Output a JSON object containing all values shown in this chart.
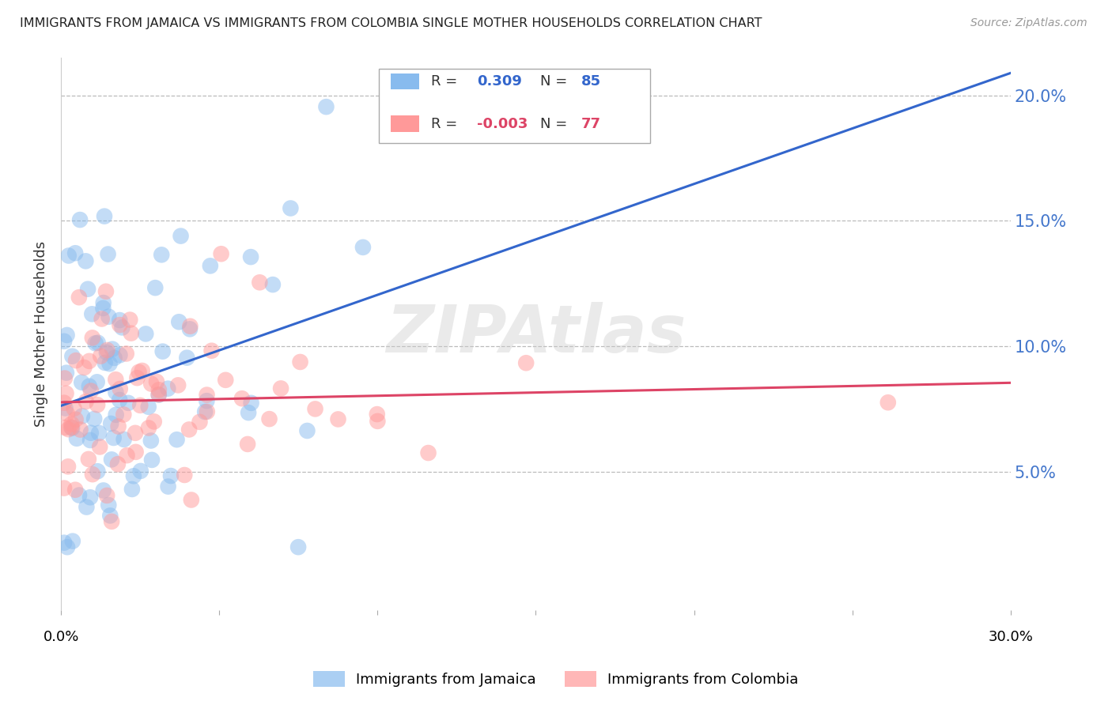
{
  "title": "IMMIGRANTS FROM JAMAICA VS IMMIGRANTS FROM COLOMBIA SINGLE MOTHER HOUSEHOLDS CORRELATION CHART",
  "source": "Source: ZipAtlas.com",
  "ylabel": "Single Mother Households",
  "xlim": [
    0.0,
    0.3
  ],
  "ylim": [
    -0.005,
    0.215
  ],
  "yticks": [
    0.05,
    0.1,
    0.15,
    0.2
  ],
  "ytick_labels": [
    "5.0%",
    "10.0%",
    "15.0%",
    "20.0%"
  ],
  "jamaica_R": 0.309,
  "jamaica_N": 85,
  "colombia_R": -0.003,
  "colombia_N": 77,
  "jamaica_color": "#88bbee",
  "colombia_color": "#ff9999",
  "jamaica_line_color": "#3366cc",
  "colombia_line_color": "#dd4466",
  "watermark": "ZIPAtlas",
  "background_color": "#ffffff",
  "grid_color": "#bbbbbb",
  "title_color": "#222222",
  "axis_label_color": "#4477cc"
}
